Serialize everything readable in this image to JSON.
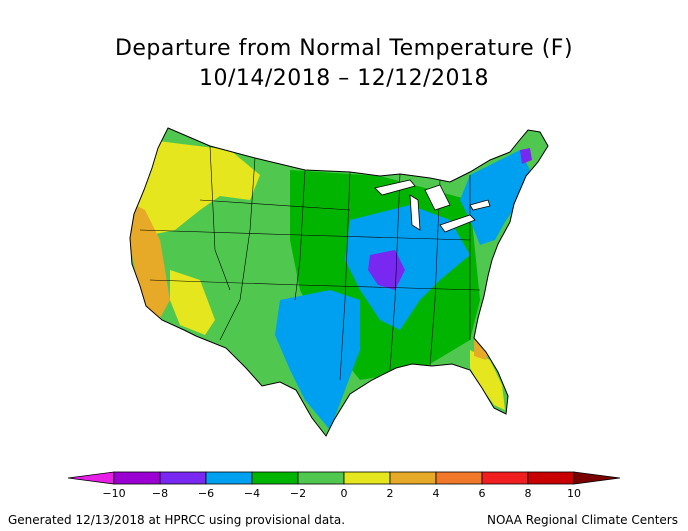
{
  "title": "Departure from Normal Temperature (F)",
  "subtitle": "10/14/2018 – 12/12/2018",
  "colorbar": {
    "ticks": [
      "−10",
      "−8",
      "−6",
      "−4",
      "−2",
      "0",
      "2",
      "4",
      "6",
      "8",
      "10"
    ],
    "colors": [
      "#e61ee6",
      "#9b00d2",
      "#7828f0",
      "#00a0f0",
      "#00b400",
      "#50c850",
      "#e6e61e",
      "#e6aa28",
      "#f07828",
      "#f01e1e",
      "#c80000",
      "#7a0000"
    ]
  },
  "map_regions": [
    {
      "name": "west-coast",
      "category": "2 to 4",
      "color": "#e6aa28"
    },
    {
      "name": "northern-rockies",
      "category": "0 to 2",
      "color": "#e6e61e"
    },
    {
      "name": "great-basin",
      "category": "-2 to 0",
      "color": "#50c850"
    },
    {
      "name": "northern-plains",
      "category": "-4 to -2",
      "color": "#00b400"
    },
    {
      "name": "southern-plains",
      "category": "-6 to -4",
      "color": "#00a0f0"
    },
    {
      "name": "midwest",
      "category": "-6 to -4",
      "color": "#00a0f0"
    },
    {
      "name": "missouri-illinois",
      "category": "-8 to -6",
      "color": "#7828f0"
    },
    {
      "name": "southeast",
      "category": "-4 to -2",
      "color": "#00b400"
    },
    {
      "name": "florida-gulf",
      "category": "0 to 2",
      "color": "#e6e61e"
    },
    {
      "name": "northeast",
      "category": "-6 to -4",
      "color": "#00a0f0"
    },
    {
      "name": "maine-peak",
      "category": "-8 to -6",
      "color": "#7828f0"
    }
  ],
  "footer": {
    "left": "Generated 12/13/2018 at HPRCC using provisional data.",
    "right": "NOAA Regional Climate Centers"
  }
}
